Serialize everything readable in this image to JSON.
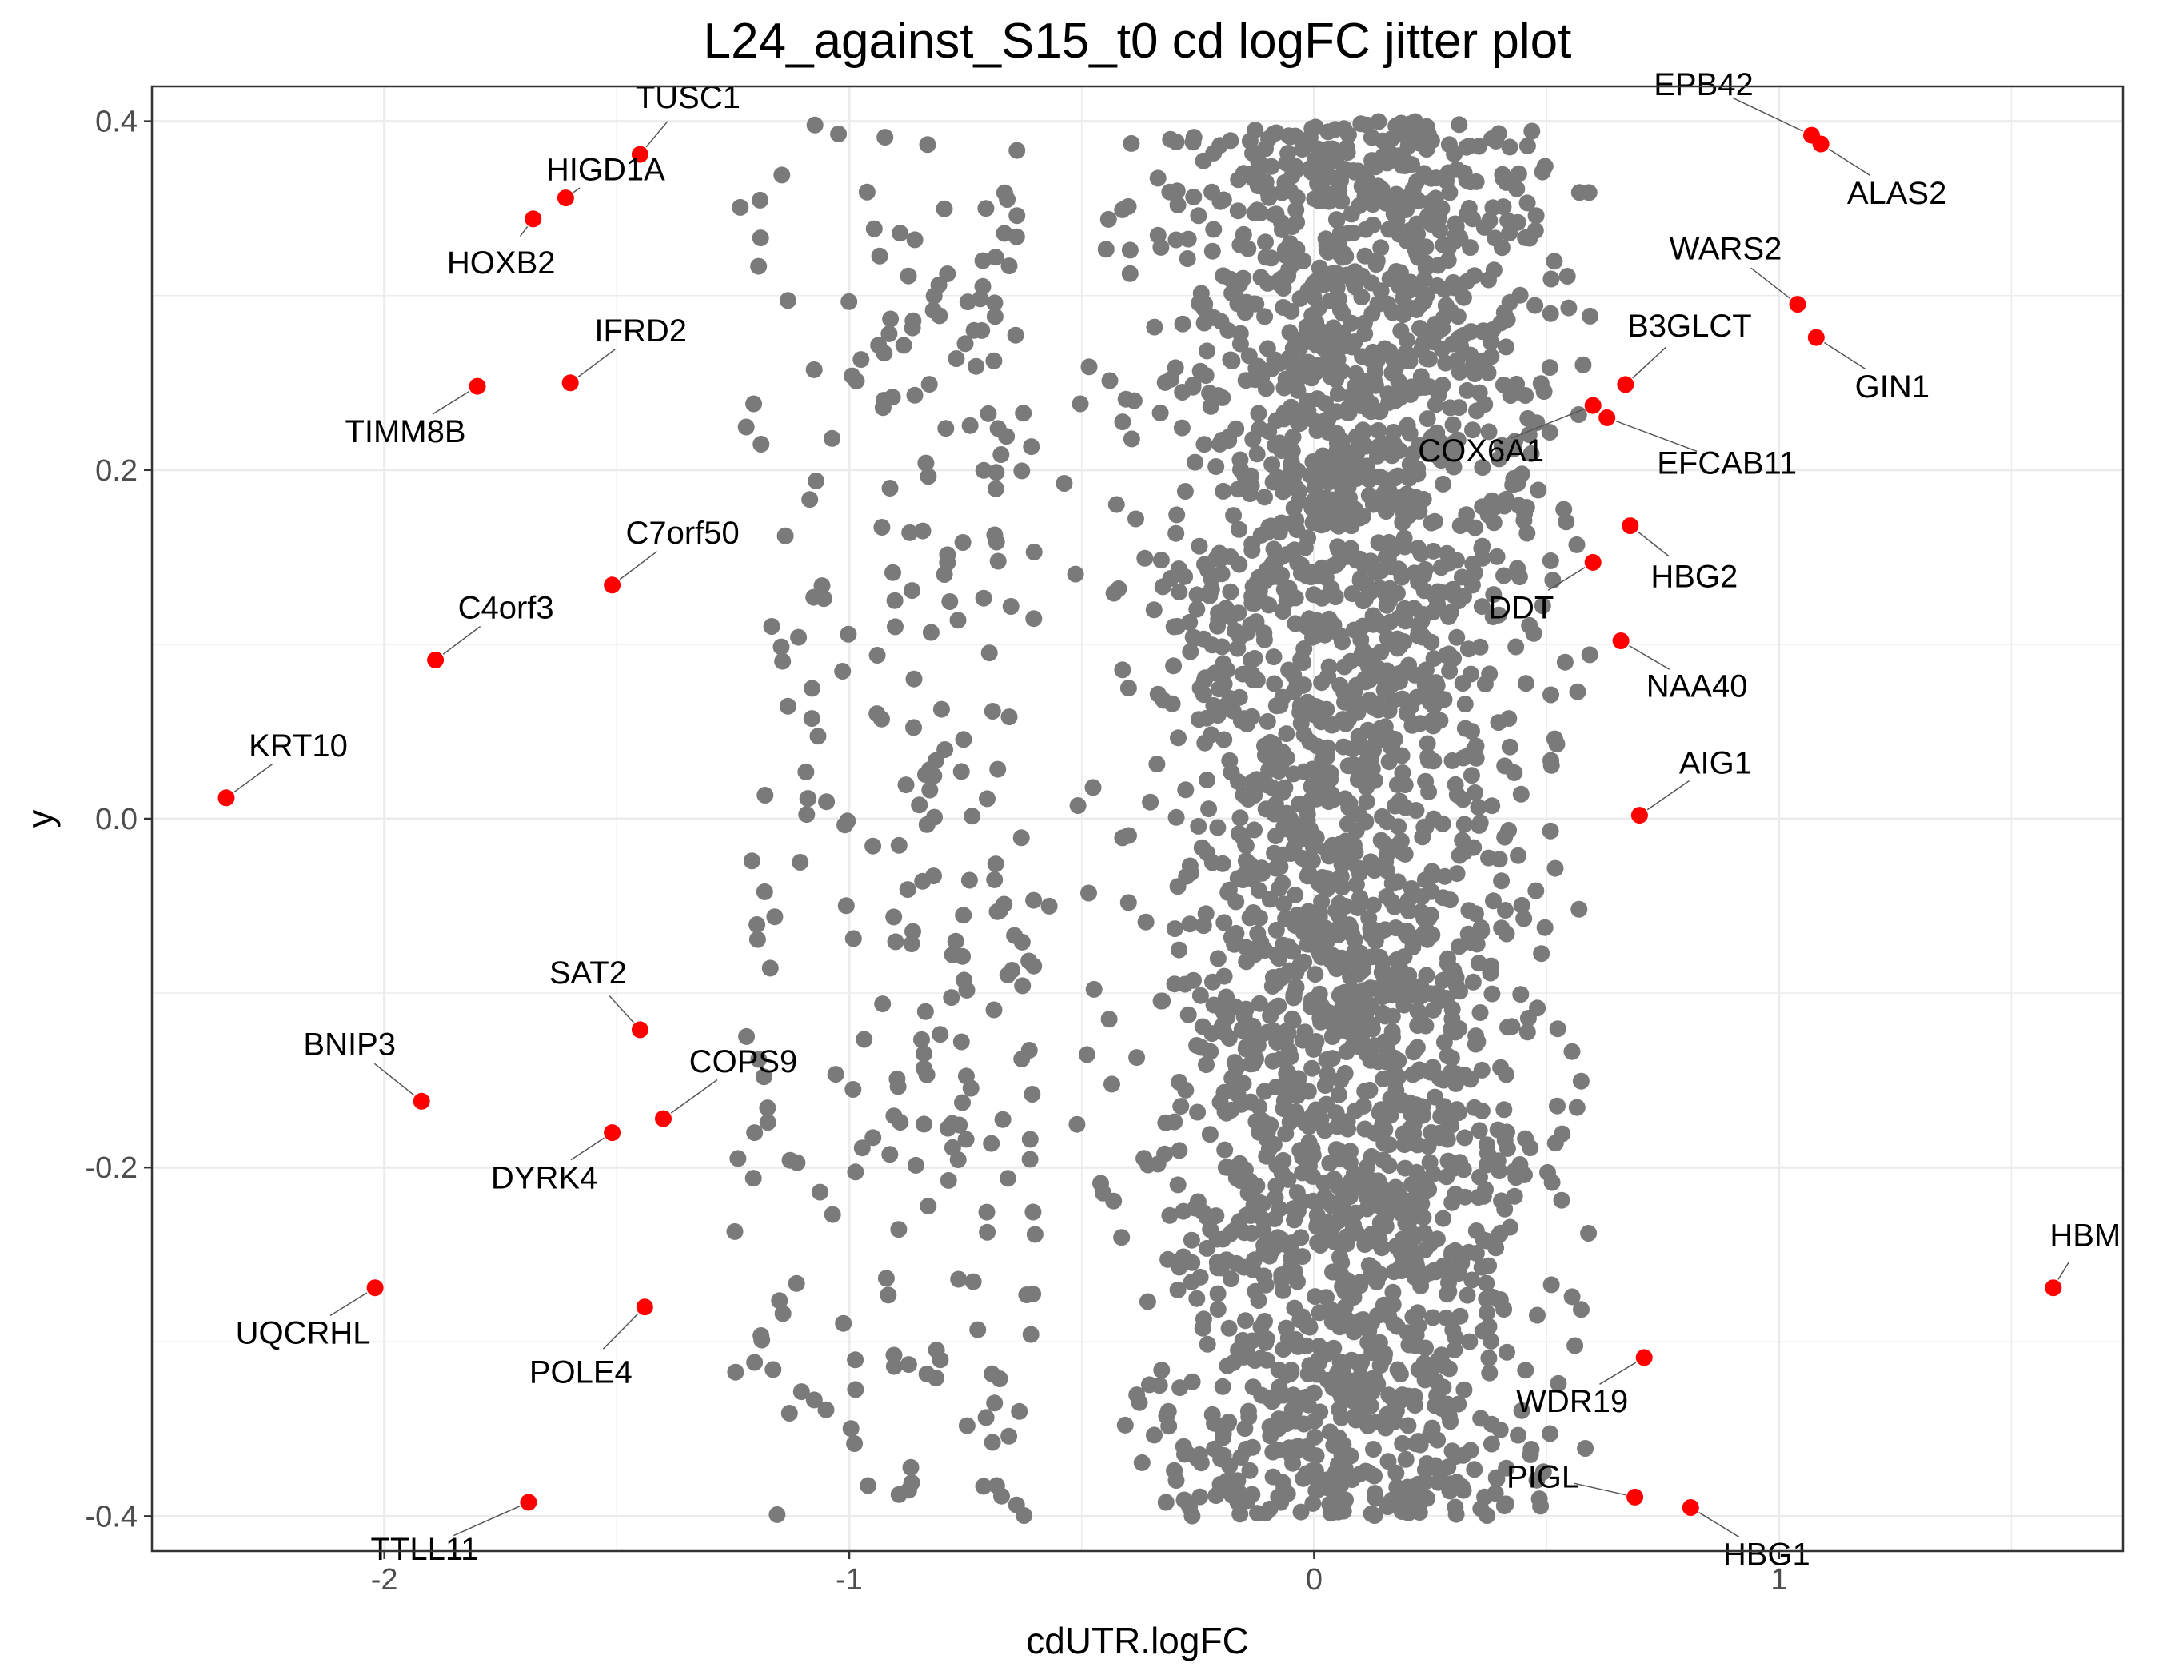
{
  "chart_data": {
    "type": "scatter",
    "title": "L24_against_S15_t0 cd logFC jitter plot",
    "xlabel": "cdUTR.logFC",
    "ylabel": "y",
    "xlim": [
      -2.5,
      1.74
    ],
    "ylim": [
      -0.42,
      0.42
    ],
    "x_ticks": [
      "-2",
      "-1",
      "0",
      "1"
    ],
    "x_tick_values": [
      -2,
      -1,
      0,
      1
    ],
    "y_ticks": [
      "-0.4",
      "-0.2",
      "0.0",
      "0.2",
      "0.4"
    ],
    "y_tick_values": [
      -0.4,
      -0.2,
      0.0,
      0.2,
      0.4
    ],
    "grid": true,
    "colors": {
      "background_points": "#7a7a7a",
      "highlighted_points": "#ff0000",
      "grid": "#ebebeb",
      "panel_border": "#333333"
    },
    "background_points_note": "approximately 3000 non-highlighted genes, cdUTR.logFC mostly between -0.6 and 0.6 with sparse tails to about -1.25 on the left, y uniformly jittered between -0.4 and 0.4",
    "highlighted": [
      {
        "label": "TUSC1",
        "x": -1.45,
        "y": 0.381
      },
      {
        "label": "HIGD1A",
        "x": -1.61,
        "y": 0.356
      },
      {
        "label": "HOXB2",
        "x": -1.68,
        "y": 0.344
      },
      {
        "label": "IFRD2",
        "x": -1.6,
        "y": 0.25
      },
      {
        "label": "TIMM8B",
        "x": -1.8,
        "y": 0.248
      },
      {
        "label": "C7orf50",
        "x": -1.51,
        "y": 0.134
      },
      {
        "label": "C4orf3",
        "x": -1.89,
        "y": 0.091
      },
      {
        "label": "KRT10",
        "x": -2.34,
        "y": 0.012
      },
      {
        "label": "SAT2",
        "x": -1.45,
        "y": -0.121
      },
      {
        "label": "BNIP3",
        "x": -1.92,
        "y": -0.162
      },
      {
        "label": "COPS9",
        "x": -1.4,
        "y": -0.172
      },
      {
        "label": "DYRK4",
        "x": -1.51,
        "y": -0.18
      },
      {
        "label": "UQCRHL",
        "x": -2.02,
        "y": -0.269
      },
      {
        "label": "POLE4",
        "x": -1.44,
        "y": -0.28
      },
      {
        "label": "TTLL11",
        "x": -1.69,
        "y": -0.392
      },
      {
        "label": "EPB42",
        "x": 1.07,
        "y": 0.392
      },
      {
        "label": "ALAS2",
        "x": 1.09,
        "y": 0.387
      },
      {
        "label": "WARS2",
        "x": 1.04,
        "y": 0.295
      },
      {
        "label": "GIN1",
        "x": 1.08,
        "y": 0.276
      },
      {
        "label": "B3GLCT",
        "x": 0.67,
        "y": 0.249
      },
      {
        "label": "COX6A1",
        "x": 0.6,
        "y": 0.237
      },
      {
        "label": "EFCAB11",
        "x": 0.63,
        "y": 0.23
      },
      {
        "label": "HBG2",
        "x": 0.68,
        "y": 0.168
      },
      {
        "label": "DDT",
        "x": 0.6,
        "y": 0.147
      },
      {
        "label": "NAA40",
        "x": 0.66,
        "y": 0.102
      },
      {
        "label": "AIG1",
        "x": 0.7,
        "y": 0.002
      },
      {
        "label": "HBM",
        "x": 1.59,
        "y": -0.269
      },
      {
        "label": "WDR19",
        "x": 0.71,
        "y": -0.309
      },
      {
        "label": "PIGL",
        "x": 0.69,
        "y": -0.389
      },
      {
        "label": "HBG1",
        "x": 0.81,
        "y": -0.395
      }
    ]
  }
}
